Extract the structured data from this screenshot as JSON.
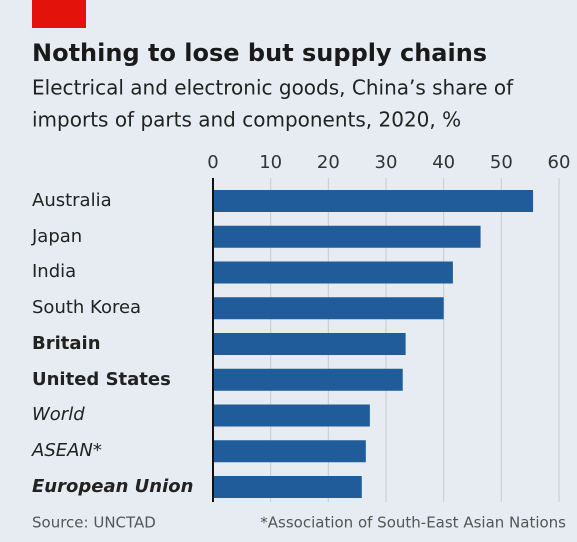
{
  "chart_data": {
    "type": "bar",
    "orientation": "horizontal",
    "title": "Nothing to lose but supply chains",
    "subtitle": [
      "Electrical and electronic goods, China’s share of",
      "imports of parts and components, 2020, %"
    ],
    "categories": [
      "Australia",
      "Japan",
      "India",
      "South Korea",
      "Britain",
      "United States",
      "World",
      "ASEAN*",
      "European Union"
    ],
    "values": [
      55.5,
      46.4,
      41.6,
      40,
      33.4,
      32.9,
      27.2,
      26.5,
      25.8
    ],
    "color": "#1f5c99",
    "xlim": [
      0,
      60
    ],
    "xticks": [
      0,
      10,
      20,
      30,
      40,
      50,
      60
    ],
    "grid": true,
    "source": "Source: UNCTAD",
    "footnote": "*Association of South-East Asian Nations"
  }
}
